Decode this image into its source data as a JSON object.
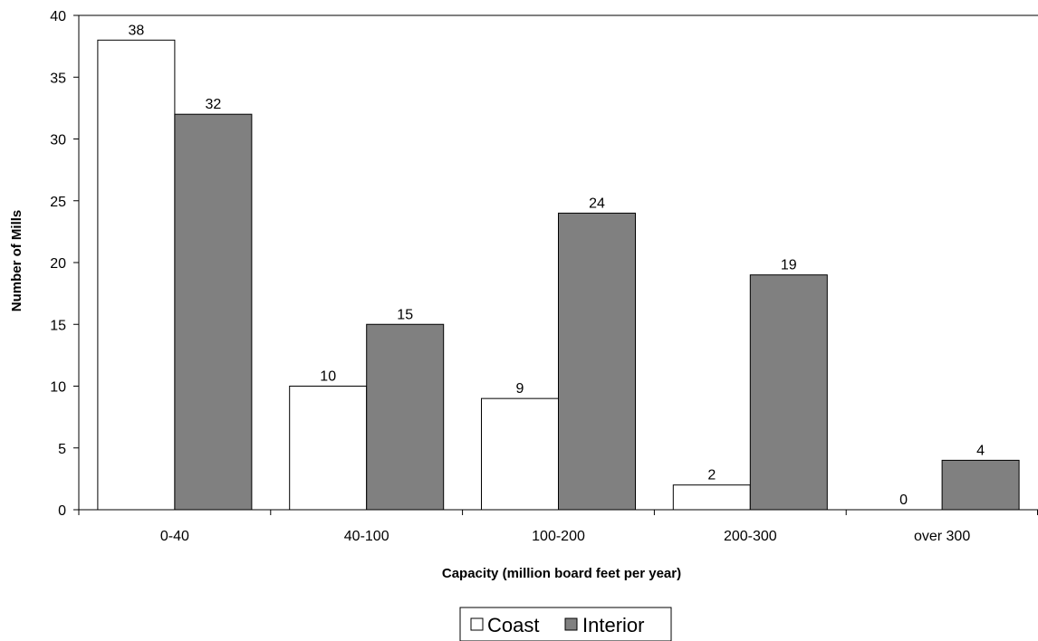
{
  "chart_data": {
    "type": "bar",
    "title": "",
    "xlabel": "Capacity (million board feet per year)",
    "ylabel": "Number of Mills",
    "categories": [
      "0-40",
      "40-100",
      "100-200",
      "200-300",
      "over 300"
    ],
    "series": [
      {
        "name": "Coast",
        "values": [
          38,
          10,
          9,
          2,
          0
        ],
        "color": "#ffffff"
      },
      {
        "name": "Interior",
        "values": [
          32,
          15,
          24,
          19,
          4
        ],
        "color": "#808080"
      }
    ],
    "ylim": [
      0,
      40
    ],
    "yticks": [
      0,
      5,
      10,
      15,
      20,
      25,
      30,
      35,
      40
    ],
    "grid": false,
    "legend_position": "bottom"
  }
}
